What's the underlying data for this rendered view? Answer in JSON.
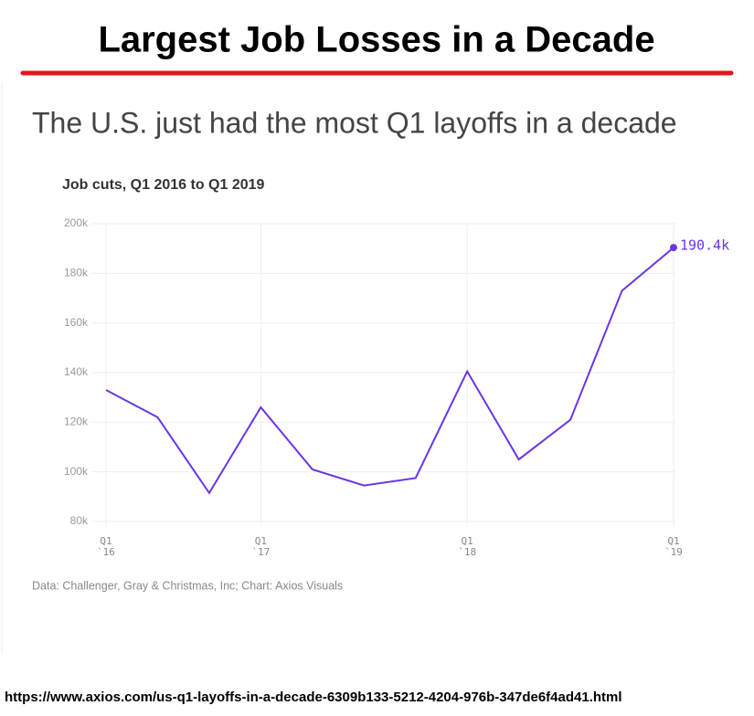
{
  "header": "Largest Job Losses in a Decade",
  "url": "https://www.axios.com/us-q1-layoffs-in-a-decade-6309b133-5212-4204-976b-347de6f4ad41.html",
  "chart_data": {
    "type": "line",
    "title": "The U.S. just had the most Q1 layoffs in a decade",
    "subtitle": "Job cuts, Q1 2016 to Q1 2019",
    "source": "Data: Challenger, Gray & Christmas, Inc; Chart: Axios Visuals",
    "categories": [
      "Q1\n`16",
      null,
      null,
      "Q1\n`17",
      null,
      null,
      null,
      "Q1\n`18",
      null,
      null,
      null,
      "Q1\n`19"
    ],
    "series": [
      {
        "name": "Job cuts",
        "color": "#6a35e8",
        "values": [
          133000,
          122000,
          91500,
          126000,
          101000,
          94500,
          97500,
          140500,
          105000,
          121000,
          173000,
          190400
        ],
        "value_labels": [
          null,
          null,
          null,
          null,
          null,
          null,
          null,
          null,
          null,
          null,
          null,
          "190.4k"
        ]
      }
    ],
    "ylim": [
      80000,
      200000
    ],
    "yticks": [
      {
        "value": 80000,
        "label": "80k"
      },
      {
        "value": 100000,
        "label": "100k"
      },
      {
        "value": 120000,
        "label": "120k"
      },
      {
        "value": 140000,
        "label": "140k"
      },
      {
        "value": 160000,
        "label": "160k"
      },
      {
        "value": 180000,
        "label": "180k"
      },
      {
        "value": 200000,
        "label": "200k"
      }
    ],
    "grid": true
  }
}
